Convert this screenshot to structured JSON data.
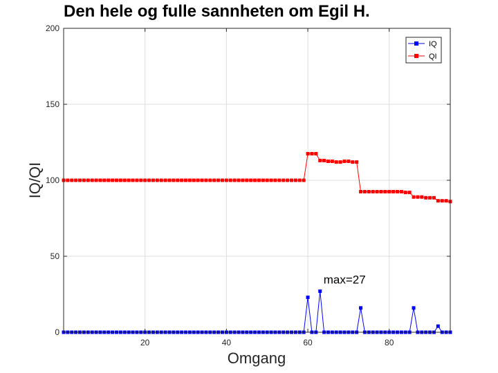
{
  "chart_data": {
    "type": "line",
    "title": "Den hele og fulle sannheten om Egil H.",
    "xlabel": "Omgang",
    "ylabel": "IQ/QI",
    "xlim": [
      0,
      95
    ],
    "ylim": [
      0,
      200
    ],
    "xticks": [
      20,
      40,
      60,
      80
    ],
    "yticks": [
      0,
      50,
      100,
      150,
      200
    ],
    "grid": true,
    "legend_position": "top-right",
    "series": [
      {
        "name": "IQ",
        "color": "#0000ff",
        "marker": "square",
        "points": [
          [
            0,
            0
          ],
          [
            1,
            0
          ],
          [
            2,
            0
          ],
          [
            3,
            0
          ],
          [
            4,
            0
          ],
          [
            5,
            0
          ],
          [
            6,
            0
          ],
          [
            7,
            0
          ],
          [
            8,
            0
          ],
          [
            9,
            0
          ],
          [
            10,
            0
          ],
          [
            11,
            0
          ],
          [
            12,
            0
          ],
          [
            13,
            0
          ],
          [
            14,
            0
          ],
          [
            15,
            0
          ],
          [
            16,
            0
          ],
          [
            17,
            0
          ],
          [
            18,
            0
          ],
          [
            19,
            0
          ],
          [
            20,
            0
          ],
          [
            21,
            0
          ],
          [
            22,
            0
          ],
          [
            23,
            0
          ],
          [
            24,
            0
          ],
          [
            25,
            0
          ],
          [
            26,
            0
          ],
          [
            27,
            0
          ],
          [
            28,
            0
          ],
          [
            29,
            0
          ],
          [
            30,
            0
          ],
          [
            31,
            0
          ],
          [
            32,
            0
          ],
          [
            33,
            0
          ],
          [
            34,
            0
          ],
          [
            35,
            0
          ],
          [
            36,
            0
          ],
          [
            37,
            0
          ],
          [
            38,
            0
          ],
          [
            39,
            0
          ],
          [
            40,
            0
          ],
          [
            41,
            0
          ],
          [
            42,
            0
          ],
          [
            43,
            0
          ],
          [
            44,
            0
          ],
          [
            45,
            0
          ],
          [
            46,
            0
          ],
          [
            47,
            0
          ],
          [
            48,
            0
          ],
          [
            49,
            0
          ],
          [
            50,
            0
          ],
          [
            51,
            0
          ],
          [
            52,
            0
          ],
          [
            53,
            0
          ],
          [
            54,
            0
          ],
          [
            55,
            0
          ],
          [
            56,
            0
          ],
          [
            57,
            0
          ],
          [
            58,
            0
          ],
          [
            59,
            0
          ],
          [
            60,
            23
          ],
          [
            61,
            0
          ],
          [
            62,
            0
          ],
          [
            63,
            27
          ],
          [
            64,
            0
          ],
          [
            65,
            0
          ],
          [
            66,
            0
          ],
          [
            67,
            0
          ],
          [
            68,
            0
          ],
          [
            69,
            0
          ],
          [
            70,
            0
          ],
          [
            71,
            0
          ],
          [
            72,
            0
          ],
          [
            73,
            16
          ],
          [
            74,
            0
          ],
          [
            75,
            0
          ],
          [
            76,
            0
          ],
          [
            77,
            0
          ],
          [
            78,
            0
          ],
          [
            79,
            0
          ],
          [
            80,
            0
          ],
          [
            81,
            0
          ],
          [
            82,
            0
          ],
          [
            83,
            0
          ],
          [
            84,
            0
          ],
          [
            85,
            0
          ],
          [
            86,
            16
          ],
          [
            87,
            0
          ],
          [
            88,
            0
          ],
          [
            89,
            0
          ],
          [
            90,
            0
          ],
          [
            91,
            0
          ],
          [
            92,
            4
          ],
          [
            93,
            0
          ],
          [
            94,
            0
          ],
          [
            95,
            0
          ]
        ]
      },
      {
        "name": "QI",
        "color": "#ff0000",
        "marker": "square",
        "points": [
          [
            0,
            100
          ],
          [
            1,
            100
          ],
          [
            2,
            100
          ],
          [
            3,
            100
          ],
          [
            4,
            100
          ],
          [
            5,
            100
          ],
          [
            6,
            100
          ],
          [
            7,
            100
          ],
          [
            8,
            100
          ],
          [
            9,
            100
          ],
          [
            10,
            100
          ],
          [
            11,
            100
          ],
          [
            12,
            100
          ],
          [
            13,
            100
          ],
          [
            14,
            100
          ],
          [
            15,
            100
          ],
          [
            16,
            100
          ],
          [
            17,
            100
          ],
          [
            18,
            100
          ],
          [
            19,
            100
          ],
          [
            20,
            100
          ],
          [
            21,
            100
          ],
          [
            22,
            100
          ],
          [
            23,
            100
          ],
          [
            24,
            100
          ],
          [
            25,
            100
          ],
          [
            26,
            100
          ],
          [
            27,
            100
          ],
          [
            28,
            100
          ],
          [
            29,
            100
          ],
          [
            30,
            100
          ],
          [
            31,
            100
          ],
          [
            32,
            100
          ],
          [
            33,
            100
          ],
          [
            34,
            100
          ],
          [
            35,
            100
          ],
          [
            36,
            100
          ],
          [
            37,
            100
          ],
          [
            38,
            100
          ],
          [
            39,
            100
          ],
          [
            40,
            100
          ],
          [
            41,
            100
          ],
          [
            42,
            100
          ],
          [
            43,
            100
          ],
          [
            44,
            100
          ],
          [
            45,
            100
          ],
          [
            46,
            100
          ],
          [
            47,
            100
          ],
          [
            48,
            100
          ],
          [
            49,
            100
          ],
          [
            50,
            100
          ],
          [
            51,
            100
          ],
          [
            52,
            100
          ],
          [
            53,
            100
          ],
          [
            54,
            100
          ],
          [
            55,
            100
          ],
          [
            56,
            100
          ],
          [
            57,
            100
          ],
          [
            58,
            100
          ],
          [
            59,
            100
          ],
          [
            60,
            117.5
          ],
          [
            61,
            117.5
          ],
          [
            62,
            117.5
          ],
          [
            63,
            113
          ],
          [
            64,
            113
          ],
          [
            65,
            112.5
          ],
          [
            66,
            112.5
          ],
          [
            67,
            112
          ],
          [
            68,
            112
          ],
          [
            69,
            112.5
          ],
          [
            70,
            112.5
          ],
          [
            71,
            112
          ],
          [
            72,
            112
          ],
          [
            73,
            92.5
          ],
          [
            74,
            92.5
          ],
          [
            75,
            92.5
          ],
          [
            76,
            92.5
          ],
          [
            77,
            92.5
          ],
          [
            78,
            92.5
          ],
          [
            79,
            92.5
          ],
          [
            80,
            92.5
          ],
          [
            81,
            92.5
          ],
          [
            82,
            92.5
          ],
          [
            83,
            92.5
          ],
          [
            84,
            92
          ],
          [
            85,
            92
          ],
          [
            86,
            89
          ],
          [
            87,
            89
          ],
          [
            88,
            89
          ],
          [
            89,
            88.5
          ],
          [
            90,
            88.5
          ],
          [
            91,
            88.5
          ],
          [
            92,
            86.5
          ],
          [
            93,
            86.5
          ],
          [
            94,
            86.5
          ],
          [
            95,
            86
          ]
        ]
      }
    ],
    "annotations": [
      {
        "text": "max=27",
        "x": 63,
        "y": 27
      }
    ]
  }
}
